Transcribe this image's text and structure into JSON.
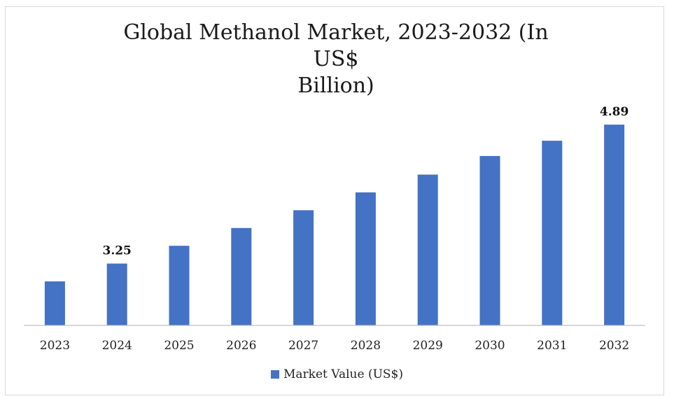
{
  "chart_data": {
    "type": "bar",
    "title": "Global Methanol Market, 2023-2032 (In US$\nBillion)",
    "categories": [
      "2023",
      "2024",
      "2025",
      "2026",
      "2027",
      "2028",
      "2029",
      "2030",
      "2031",
      "2032"
    ],
    "series": [
      {
        "name": "Market Value (US$)",
        "color": "#4472C4",
        "values": [
          3.04,
          3.25,
          3.46,
          3.67,
          3.88,
          4.09,
          4.3,
          4.52,
          4.7,
          4.89
        ],
        "data_labels": {
          "1": "3.25",
          "9": "4.89"
        }
      }
    ],
    "ylim": [
      2.52,
      4.99
    ],
    "xlabel": "",
    "ylabel": "",
    "y_axis_visible": false,
    "grid": false,
    "legend_position": "bottom"
  }
}
